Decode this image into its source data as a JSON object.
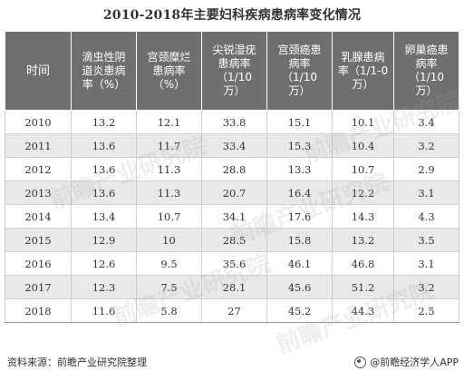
{
  "title": "2010-2018年主要妇科疾病患病率变化情况",
  "table": {
    "headers": [
      "时间",
      "滴虫性阴\n道炎患病\n率（%）",
      "宫颈糜烂\n患病率\n（%）",
      "尖锐湿疣\n患病率\n（1/10\n万）",
      "宫颈癌患\n病率\n（1/10\n万）",
      "乳腺患病\n率（1/1-0\n万）",
      "卵巢癌患\n病率\n（1/10\n万）"
    ],
    "rows": [
      [
        "2010",
        "13.2",
        "12.1",
        "33.8",
        "15.1",
        "10.1",
        "3.4"
      ],
      [
        "2011",
        "13.6",
        "11.7",
        "33.4",
        "15.3",
        "10.4",
        "3.2"
      ],
      [
        "2012",
        "13.6",
        "11.3",
        "28.8",
        "13.3",
        "10.7",
        "2.9"
      ],
      [
        "2013",
        "13.6",
        "11.3",
        "20.7",
        "16.4",
        "12.2",
        "3.1"
      ],
      [
        "2014",
        "13.4",
        "10.7",
        "34.1",
        "17.6",
        "14.3",
        "4.3"
      ],
      [
        "2015",
        "12.9",
        "10",
        "28.5",
        "15.8",
        "13.2",
        "3.5"
      ],
      [
        "2016",
        "12.6",
        "9.5",
        "35.6",
        "46.1",
        "46.8",
        "3.1"
      ],
      [
        "2017",
        "12.3",
        "7.5",
        "28.1",
        "45.6",
        "51.2",
        "3.2"
      ],
      [
        "2018",
        "11.6",
        "5.8",
        "27",
        "45.2",
        "44.3",
        "2.5"
      ]
    ]
  },
  "footer": {
    "source": "资料来源：前瞻产业研究院整理",
    "brand": "@前瞻经济学人APP",
    "brand_icon": "qianzhan-logo-icon"
  },
  "watermark": "前瞻产业研究院"
}
